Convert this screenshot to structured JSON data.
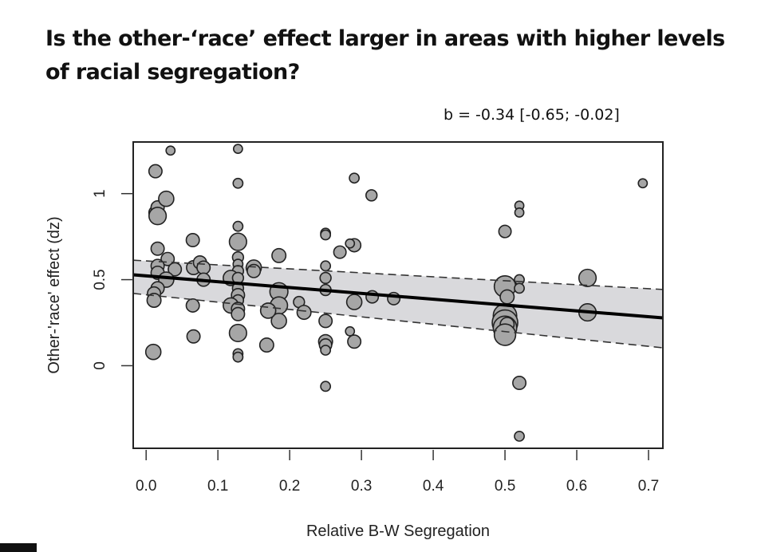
{
  "slide": {
    "title": "Is the other-‘race’ effect larger in areas with higher levels of racial segregation?",
    "stat_annotation": "b = -0.34 [-0.65; -0.02]"
  },
  "chart_data": {
    "type": "scatter",
    "title": "Is the other-‘race’ effect larger in areas with higher levels of racial segregation?",
    "annotation": "b = -0.34 [-0.65; -0.02]",
    "xlabel": "Relative B-W Segregation",
    "ylabel": "Other-'race' effect (dz)",
    "xlim": [
      -0.018,
      0.72
    ],
    "ylim": [
      -0.48,
      1.3
    ],
    "xticks": [
      0.0,
      0.1,
      0.2,
      0.3,
      0.4,
      0.5,
      0.6,
      0.7
    ],
    "xtick_labels": [
      "0.0",
      "0.1",
      "0.2",
      "0.3",
      "0.4",
      "0.5",
      "0.6",
      "0.7"
    ],
    "yticks": [
      0,
      0.5,
      1
    ],
    "ytick_labels": [
      "0",
      "0.5",
      "1"
    ],
    "grid": false,
    "colors": {
      "point_fill": "#a6a6a6",
      "point_stroke": "#222222",
      "band": "#d9d9dc",
      "line": "#000000"
    },
    "regression": {
      "x": [
        -0.018,
        0.72
      ],
      "y": [
        0.528,
        0.278
      ],
      "ci_upper": [
        0.613,
        0.443
      ],
      "ci_lower": [
        0.42,
        0.104
      ]
    },
    "points_note": "marker size proportional to study weight (relative)",
    "points": [
      {
        "x": 0.013,
        "y": 1.13,
        "w": 2
      },
      {
        "x": 0.034,
        "y": 1.25,
        "w": 1
      },
      {
        "x": 0.013,
        "y": 0.89,
        "w": 2
      },
      {
        "x": 0.016,
        "y": 0.92,
        "w": 2
      },
      {
        "x": 0.016,
        "y": 0.87,
        "w": 3
      },
      {
        "x": 0.028,
        "y": 0.97,
        "w": 2.5
      },
      {
        "x": 0.016,
        "y": 0.68,
        "w": 2
      },
      {
        "x": 0.03,
        "y": 0.62,
        "w": 2
      },
      {
        "x": 0.016,
        "y": 0.58,
        "w": 2
      },
      {
        "x": 0.016,
        "y": 0.54,
        "w": 2
      },
      {
        "x": 0.04,
        "y": 0.56,
        "w": 2
      },
      {
        "x": 0.028,
        "y": 0.5,
        "w": 2.5
      },
      {
        "x": 0.016,
        "y": 0.45,
        "w": 2
      },
      {
        "x": 0.011,
        "y": 0.42,
        "w": 2
      },
      {
        "x": 0.011,
        "y": 0.38,
        "w": 2.2
      },
      {
        "x": 0.01,
        "y": 0.08,
        "w": 2.5
      },
      {
        "x": 0.065,
        "y": 0.73,
        "w": 2
      },
      {
        "x": 0.066,
        "y": 0.57,
        "w": 2.2
      },
      {
        "x": 0.075,
        "y": 0.6,
        "w": 2
      },
      {
        "x": 0.08,
        "y": 0.57,
        "w": 2
      },
      {
        "x": 0.08,
        "y": 0.5,
        "w": 2
      },
      {
        "x": 0.065,
        "y": 0.35,
        "w": 2
      },
      {
        "x": 0.066,
        "y": 0.17,
        "w": 2
      },
      {
        "x": 0.128,
        "y": 1.26,
        "w": 1
      },
      {
        "x": 0.128,
        "y": 1.06,
        "w": 1.2
      },
      {
        "x": 0.128,
        "y": 0.81,
        "w": 1.2
      },
      {
        "x": 0.128,
        "y": 0.72,
        "w": 3
      },
      {
        "x": 0.128,
        "y": 0.63,
        "w": 1.5
      },
      {
        "x": 0.128,
        "y": 0.59,
        "w": 1.2
      },
      {
        "x": 0.128,
        "y": 0.55,
        "w": 1.5
      },
      {
        "x": 0.118,
        "y": 0.51,
        "w": 2.5
      },
      {
        "x": 0.128,
        "y": 0.51,
        "w": 1.5
      },
      {
        "x": 0.128,
        "y": 0.45,
        "w": 1.5
      },
      {
        "x": 0.128,
        "y": 0.41,
        "w": 2
      },
      {
        "x": 0.128,
        "y": 0.38,
        "w": 1.5
      },
      {
        "x": 0.118,
        "y": 0.35,
        "w": 2.5
      },
      {
        "x": 0.128,
        "y": 0.33,
        "w": 2
      },
      {
        "x": 0.128,
        "y": 0.3,
        "w": 2
      },
      {
        "x": 0.128,
        "y": 0.19,
        "w": 3
      },
      {
        "x": 0.128,
        "y": 0.07,
        "w": 1.2
      },
      {
        "x": 0.128,
        "y": 0.05,
        "w": 1.2
      },
      {
        "x": 0.15,
        "y": 0.57,
        "w": 2.5
      },
      {
        "x": 0.15,
        "y": 0.55,
        "w": 2
      },
      {
        "x": 0.185,
        "y": 0.64,
        "w": 2.2
      },
      {
        "x": 0.185,
        "y": 0.43,
        "w": 3.2
      },
      {
        "x": 0.185,
        "y": 0.35,
        "w": 3
      },
      {
        "x": 0.185,
        "y": 0.26,
        "w": 2.5
      },
      {
        "x": 0.17,
        "y": 0.32,
        "w": 2.5
      },
      {
        "x": 0.168,
        "y": 0.12,
        "w": 2.2
      },
      {
        "x": 0.213,
        "y": 0.37,
        "w": 1.5
      },
      {
        "x": 0.22,
        "y": 0.31,
        "w": 2.2
      },
      {
        "x": 0.25,
        "y": 0.77,
        "w": 1.2
      },
      {
        "x": 0.25,
        "y": 0.76,
        "w": 1.2
      },
      {
        "x": 0.25,
        "y": 0.58,
        "w": 1.2
      },
      {
        "x": 0.25,
        "y": 0.51,
        "w": 1.5
      },
      {
        "x": 0.25,
        "y": 0.44,
        "w": 1.5
      },
      {
        "x": 0.25,
        "y": 0.26,
        "w": 2
      },
      {
        "x": 0.25,
        "y": 0.14,
        "w": 2.2
      },
      {
        "x": 0.25,
        "y": 0.12,
        "w": 1.8
      },
      {
        "x": 0.25,
        "y": 0.09,
        "w": 1.2
      },
      {
        "x": 0.25,
        "y": -0.12,
        "w": 1.2
      },
      {
        "x": 0.27,
        "y": 0.66,
        "w": 1.8
      },
      {
        "x": 0.29,
        "y": 1.09,
        "w": 1.2
      },
      {
        "x": 0.29,
        "y": 0.7,
        "w": 2
      },
      {
        "x": 0.284,
        "y": 0.71,
        "w": 1
      },
      {
        "x": 0.29,
        "y": 0.37,
        "w": 2.5
      },
      {
        "x": 0.284,
        "y": 0.2,
        "w": 1
      },
      {
        "x": 0.29,
        "y": 0.14,
        "w": 2
      },
      {
        "x": 0.314,
        "y": 0.99,
        "w": 1.5
      },
      {
        "x": 0.315,
        "y": 0.4,
        "w": 1.8
      },
      {
        "x": 0.345,
        "y": 0.39,
        "w": 1.8
      },
      {
        "x": 0.5,
        "y": 0.78,
        "w": 1.8
      },
      {
        "x": 0.5,
        "y": 0.46,
        "w": 4
      },
      {
        "x": 0.503,
        "y": 0.4,
        "w": 2.2
      },
      {
        "x": 0.5,
        "y": 0.29,
        "w": 4.5
      },
      {
        "x": 0.5,
        "y": 0.25,
        "w": 5
      },
      {
        "x": 0.5,
        "y": 0.22,
        "w": 4.5
      },
      {
        "x": 0.503,
        "y": 0.24,
        "w": 2.2
      },
      {
        "x": 0.5,
        "y": 0.18,
        "w": 4
      },
      {
        "x": 0.52,
        "y": 0.93,
        "w": 1
      },
      {
        "x": 0.52,
        "y": 0.89,
        "w": 1
      },
      {
        "x": 0.52,
        "y": 0.5,
        "w": 1.2
      },
      {
        "x": 0.52,
        "y": 0.45,
        "w": 1.2
      },
      {
        "x": 0.52,
        "y": -0.1,
        "w": 2
      },
      {
        "x": 0.52,
        "y": -0.41,
        "w": 1.2
      },
      {
        "x": 0.615,
        "y": 0.51,
        "w": 3
      },
      {
        "x": 0.615,
        "y": 0.31,
        "w": 3
      },
      {
        "x": 0.692,
        "y": 1.06,
        "w": 1
      }
    ]
  }
}
